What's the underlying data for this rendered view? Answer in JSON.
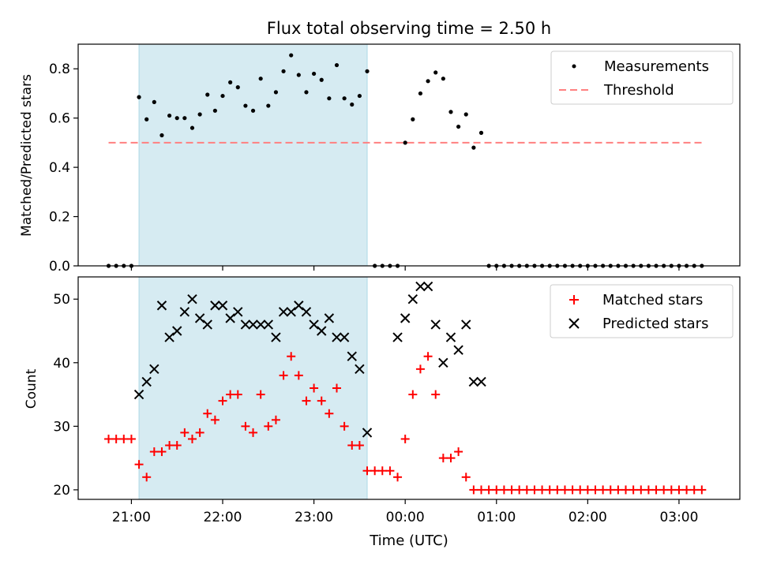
{
  "chart_data": [
    {
      "type": "scatter",
      "title": "Flux total observing time = 2.50 h",
      "xlabel": "",
      "ylabel": "Matched/Predicted stars",
      "xlim": [
        "20:25",
        "03:40"
      ],
      "ylim": [
        0,
        0.9
      ],
      "yticks": [
        "0.0",
        "0.2",
        "0.4",
        "0.6",
        "0.8"
      ],
      "shaded_interval": [
        "21:05",
        "23:35"
      ],
      "legend_position": "upper right",
      "legend": [
        "Measurements",
        "Threshold"
      ],
      "colors": {
        "measurements": "#000000",
        "threshold": "#ff8080",
        "shade": "#add8e6"
      },
      "threshold": {
        "name": "Threshold",
        "value": 0.5,
        "x_range": [
          "20:45",
          "03:15"
        ]
      },
      "series": [
        {
          "name": "Measurements",
          "x": [
            "20:45",
            "20:50",
            "20:55",
            "21:00",
            "21:05",
            "21:10",
            "21:15",
            "21:20",
            "21:25",
            "21:30",
            "21:35",
            "21:40",
            "21:45",
            "21:50",
            "21:55",
            "22:00",
            "22:05",
            "22:10",
            "22:15",
            "22:20",
            "22:25",
            "22:30",
            "22:35",
            "22:40",
            "22:45",
            "22:50",
            "22:55",
            "23:00",
            "23:05",
            "23:10",
            "23:15",
            "23:20",
            "23:25",
            "23:30",
            "23:35",
            "23:40",
            "23:45",
            "23:50",
            "23:55",
            "00:00",
            "00:05",
            "00:10",
            "00:15",
            "00:20",
            "00:25",
            "00:30",
            "00:35",
            "00:40",
            "00:45",
            "00:50",
            "00:55",
            "01:00",
            "01:05",
            "01:10",
            "01:15",
            "01:20",
            "01:25",
            "01:30",
            "01:35",
            "01:40",
            "01:45",
            "01:50",
            "01:55",
            "02:00",
            "02:05",
            "02:10",
            "02:15",
            "02:20",
            "02:25",
            "02:30",
            "02:35",
            "02:40",
            "02:45",
            "02:50",
            "02:55",
            "03:00",
            "03:05",
            "03:10",
            "03:15"
          ],
          "y": [
            0,
            0,
            0,
            0,
            0.685,
            0.595,
            0.665,
            0.53,
            0.61,
            0.6,
            0.6,
            0.56,
            0.615,
            0.695,
            0.63,
            0.69,
            0.745,
            0.725,
            0.65,
            0.63,
            0.76,
            0.65,
            0.705,
            0.79,
            0.855,
            0.775,
            0.705,
            0.78,
            0.755,
            0.68,
            0.815,
            0.68,
            0.655,
            0.69,
            0.79,
            0,
            0,
            0,
            0,
            0.5,
            0.595,
            0.7,
            0.75,
            0.785,
            0.76,
            0.625,
            0.565,
            0.615,
            0.48,
            0.54,
            0,
            0,
            0,
            0,
            0,
            0,
            0,
            0,
            0,
            0,
            0,
            0,
            0,
            0,
            0,
            0,
            0,
            0,
            0,
            0,
            0,
            0,
            0,
            0,
            0,
            0,
            0,
            0,
            0
          ]
        }
      ]
    },
    {
      "type": "scatter",
      "title": "",
      "xlabel": "Time (UTC)",
      "ylabel": "Count",
      "xlim": [
        "20:25",
        "03:40"
      ],
      "ylim": [
        18.5,
        53.5
      ],
      "yticks": [
        "20",
        "30",
        "40",
        "50"
      ],
      "xticks": [
        "21:00",
        "22:00",
        "23:00",
        "00:00",
        "01:00",
        "02:00",
        "03:00"
      ],
      "shaded_interval": [
        "21:05",
        "23:35"
      ],
      "legend_position": "upper right",
      "legend": [
        "Matched stars",
        "Predicted stars"
      ],
      "colors": {
        "matched": "#ff0000",
        "predicted": "#000000",
        "shade": "#add8e6"
      },
      "series": [
        {
          "name": "Matched stars",
          "marker": "plus",
          "x": [
            "20:45",
            "20:50",
            "20:55",
            "21:00",
            "21:05",
            "21:10",
            "21:15",
            "21:20",
            "21:25",
            "21:30",
            "21:35",
            "21:40",
            "21:45",
            "21:50",
            "21:55",
            "22:00",
            "22:05",
            "22:10",
            "22:15",
            "22:20",
            "22:25",
            "22:30",
            "22:35",
            "22:40",
            "22:45",
            "22:50",
            "22:55",
            "23:00",
            "23:05",
            "23:10",
            "23:15",
            "23:20",
            "23:25",
            "23:30",
            "23:35",
            "23:40",
            "23:45",
            "23:50",
            "23:55",
            "00:00",
            "00:05",
            "00:10",
            "00:15",
            "00:20",
            "00:25",
            "00:30",
            "00:35",
            "00:40",
            "00:45",
            "00:50",
            "00:55",
            "01:00",
            "01:05",
            "01:10",
            "01:15",
            "01:20",
            "01:25",
            "01:30",
            "01:35",
            "01:40",
            "01:45",
            "01:50",
            "01:55",
            "02:00",
            "02:05",
            "02:10",
            "02:15",
            "02:20",
            "02:25",
            "02:30",
            "02:35",
            "02:40",
            "02:45",
            "02:50",
            "02:55",
            "03:00",
            "03:05",
            "03:10",
            "03:15"
          ],
          "y": [
            28,
            28,
            28,
            28,
            24,
            22,
            26,
            26,
            27,
            27,
            29,
            28,
            29,
            32,
            31,
            34,
            35,
            35,
            30,
            29,
            35,
            30,
            31,
            38,
            41,
            38,
            34,
            36,
            34,
            32,
            36,
            30,
            27,
            27,
            23,
            23,
            23,
            23,
            22,
            28,
            35,
            39,
            41,
            35,
            25,
            25,
            26,
            22,
            20,
            20,
            20,
            20,
            20,
            20,
            20,
            20,
            20,
            20,
            20,
            20,
            20,
            20,
            20,
            20,
            20,
            20,
            20,
            20,
            20,
            20,
            20,
            20,
            20,
            20,
            20,
            20,
            20,
            20,
            20
          ]
        },
        {
          "name": "Predicted stars",
          "marker": "x",
          "x": [
            "21:05",
            "21:10",
            "21:15",
            "21:20",
            "21:25",
            "21:30",
            "21:35",
            "21:40",
            "21:45",
            "21:50",
            "21:55",
            "22:00",
            "22:05",
            "22:10",
            "22:15",
            "22:20",
            "22:25",
            "22:30",
            "22:35",
            "22:40",
            "22:45",
            "22:50",
            "22:55",
            "23:00",
            "23:05",
            "23:10",
            "23:15",
            "23:20",
            "23:25",
            "23:30",
            "23:35",
            "23:55",
            "00:00",
            "00:05",
            "00:10",
            "00:15",
            "00:20",
            "00:25",
            "00:30",
            "00:35",
            "00:40",
            "00:45",
            "00:50"
          ],
          "y": [
            35,
            37,
            39,
            49,
            44,
            45,
            48,
            50,
            47,
            46,
            49,
            49,
            47,
            48,
            46,
            46,
            46,
            46,
            44,
            48,
            48,
            49,
            48,
            46,
            45,
            47,
            44,
            44,
            41,
            39,
            29,
            44,
            47,
            50,
            52,
            52,
            46,
            40,
            44,
            42,
            46,
            37,
            37
          ]
        }
      ]
    }
  ]
}
